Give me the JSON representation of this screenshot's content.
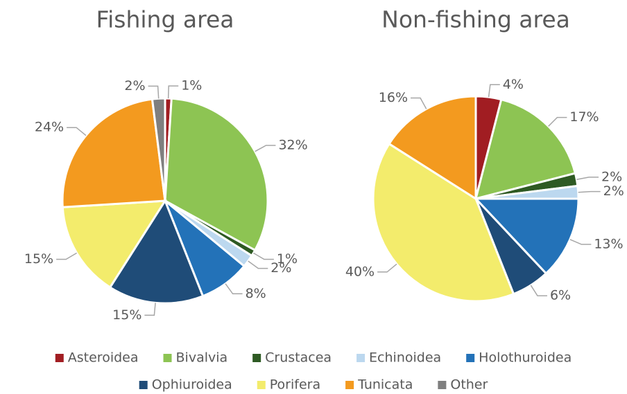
{
  "chart_data": [
    {
      "type": "pie",
      "title": "Fishing area",
      "categories": [
        "Asteroidea",
        "Bivalvia",
        "Crustacea",
        "Echinoidea",
        "Holothuroidea",
        "Ophiuroidea",
        "Porifera",
        "Tunicata",
        "Other"
      ],
      "values": [
        1,
        32,
        1,
        2,
        8,
        15,
        15,
        24,
        2
      ],
      "value_labels": [
        "1%",
        "32%",
        "1%",
        "2%",
        "8%",
        "15%",
        "15%",
        "24%",
        "2%"
      ],
      "colors": [
        "#a11d22",
        "#8dc453",
        "#2e5a23",
        "#bcd8ef",
        "#2372b8",
        "#1f4c78",
        "#f3ec6c",
        "#f39a1f",
        "#7f7f7f"
      ]
    },
    {
      "type": "pie",
      "title": "Non-fishing area",
      "categories": [
        "Asteroidea",
        "Bivalvia",
        "Crustacea",
        "Echinoidea",
        "Holothuroidea",
        "Ophiuroidea",
        "Porifera",
        "Tunicata"
      ],
      "values": [
        4,
        17,
        2,
        2,
        13,
        6,
        40,
        16
      ],
      "value_labels": [
        "4%",
        "17%",
        "2%",
        "2%",
        "13%",
        "6%",
        "40%",
        "16%"
      ],
      "colors": [
        "#a11d22",
        "#8dc453",
        "#2e5a23",
        "#bcd8ef",
        "#2372b8",
        "#1f4c78",
        "#f3ec6c",
        "#f39a1f"
      ]
    }
  ]
}
